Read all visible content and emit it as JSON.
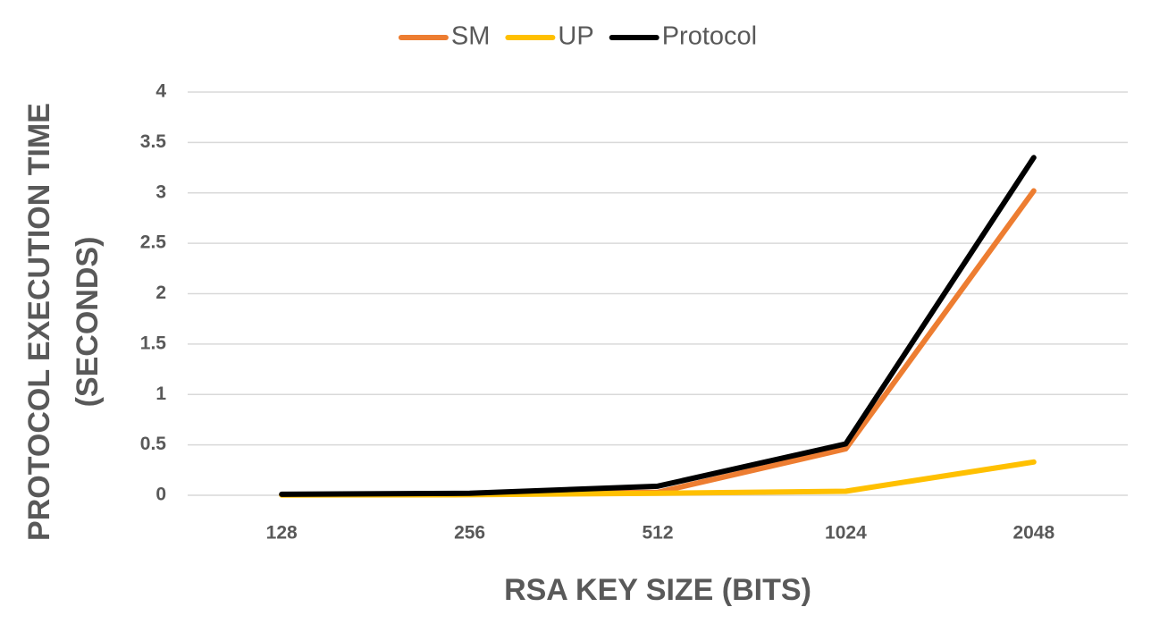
{
  "chart_data": {
    "type": "line",
    "x_label": "RSA KEY SIZE (BITS)",
    "y_label": [
      "PROTOCOL EXECUTION TIME",
      "(SECONDS)"
    ],
    "categories": [
      "128",
      "256",
      "512",
      "1024",
      "2048"
    ],
    "series": [
      {
        "name": "SM",
        "color": "#ed7d31",
        "values": [
          0.005,
          0.01,
          0.03,
          0.46,
          3.02
        ]
      },
      {
        "name": "UP",
        "color": "#ffc000",
        "values": [
          0.002,
          0.005,
          0.02,
          0.04,
          0.33
        ]
      },
      {
        "name": "Protocol",
        "color": "#000000",
        "values": [
          0.01,
          0.02,
          0.09,
          0.51,
          3.35
        ]
      }
    ],
    "ylim": [
      0,
      4
    ],
    "yticks": [
      0,
      0.5,
      1,
      1.5,
      2,
      2.5,
      3,
      3.5,
      4
    ],
    "grid": true,
    "legend": "top"
  }
}
